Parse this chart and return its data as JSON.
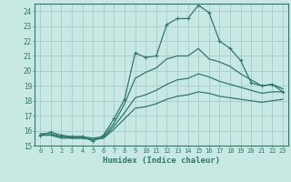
{
  "xlabel": "Humidex (Indice chaleur)",
  "xlim": [
    -0.5,
    23.5
  ],
  "ylim": [
    15,
    24.5
  ],
  "yticks": [
    15,
    16,
    17,
    18,
    19,
    20,
    21,
    22,
    23,
    24
  ],
  "xticks": [
    0,
    1,
    2,
    3,
    4,
    5,
    6,
    7,
    8,
    9,
    10,
    11,
    12,
    13,
    14,
    15,
    16,
    17,
    18,
    19,
    20,
    21,
    22,
    23
  ],
  "background_color": "#c8e8e4",
  "grid_color": "#a8ccca",
  "line_color": "#2d7a6a",
  "lines": [
    {
      "x": [
        0,
        1,
        2,
        3,
        4,
        5,
        6,
        7,
        8,
        9,
        10,
        11,
        12,
        13,
        14,
        15,
        16,
        17,
        18,
        19,
        20,
        21,
        22,
        23
      ],
      "y": [
        15.7,
        15.9,
        15.7,
        15.6,
        15.6,
        15.3,
        15.7,
        16.8,
        18.1,
        21.2,
        20.9,
        21.0,
        23.1,
        23.5,
        23.5,
        24.4,
        23.9,
        22.0,
        21.5,
        20.7,
        19.2,
        19.0,
        19.1,
        18.6
      ],
      "marker": true
    },
    {
      "x": [
        0,
        1,
        2,
        3,
        4,
        5,
        6,
        7,
        8,
        9,
        10,
        11,
        12,
        13,
        14,
        15,
        16,
        17,
        18,
        19,
        20,
        21,
        22,
        23
      ],
      "y": [
        15.8,
        15.8,
        15.6,
        15.6,
        15.6,
        15.5,
        15.6,
        16.5,
        17.8,
        19.5,
        19.9,
        20.2,
        20.8,
        21.0,
        21.0,
        21.5,
        20.8,
        20.6,
        20.3,
        19.8,
        19.4,
        19.0,
        19.1,
        18.8
      ],
      "marker": false
    },
    {
      "x": [
        0,
        1,
        2,
        3,
        4,
        5,
        6,
        7,
        8,
        9,
        10,
        11,
        12,
        13,
        14,
        15,
        16,
        17,
        18,
        19,
        20,
        21,
        22,
        23
      ],
      "y": [
        15.7,
        15.7,
        15.6,
        15.5,
        15.5,
        15.4,
        15.5,
        16.3,
        17.2,
        18.2,
        18.4,
        18.7,
        19.1,
        19.4,
        19.5,
        19.8,
        19.6,
        19.3,
        19.1,
        18.9,
        18.7,
        18.5,
        18.6,
        18.6
      ],
      "marker": false
    },
    {
      "x": [
        0,
        1,
        2,
        3,
        4,
        5,
        6,
        7,
        8,
        9,
        10,
        11,
        12,
        13,
        14,
        15,
        16,
        17,
        18,
        19,
        20,
        21,
        22,
        23
      ],
      "y": [
        15.7,
        15.7,
        15.5,
        15.5,
        15.5,
        15.4,
        15.5,
        16.1,
        16.8,
        17.5,
        17.6,
        17.8,
        18.1,
        18.3,
        18.4,
        18.6,
        18.5,
        18.3,
        18.2,
        18.1,
        18.0,
        17.9,
        18.0,
        18.1
      ],
      "marker": false
    }
  ]
}
